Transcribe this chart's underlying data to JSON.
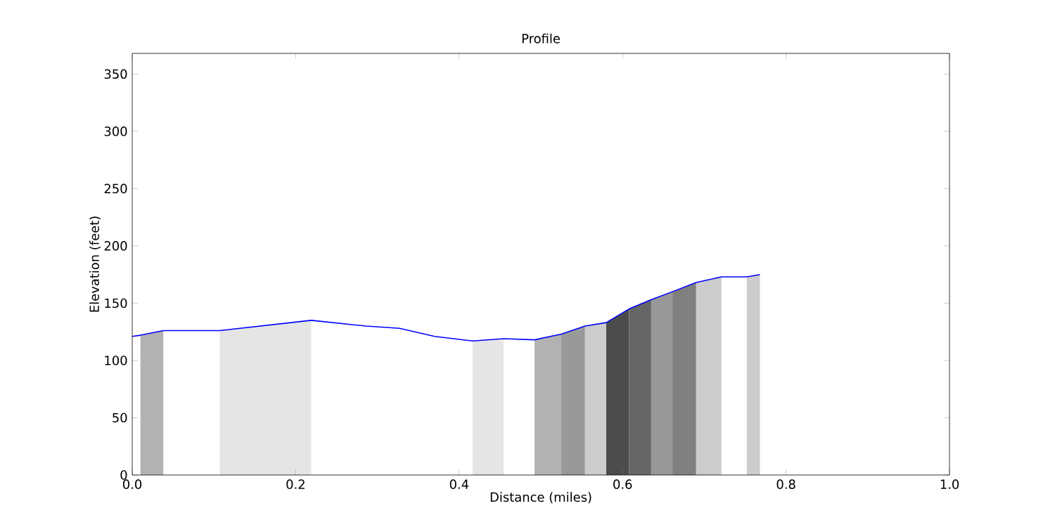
{
  "chart_data": {
    "type": "line",
    "title": "Profile",
    "xlabel": "Distance (miles)",
    "ylabel": "Elevation (feet)",
    "xlim": [
      0,
      1
    ],
    "ylim": [
      0,
      368
    ],
    "xticks": [
      {
        "value": 0,
        "label": "0.0"
      },
      {
        "value": 0.2,
        "label": "0.2"
      },
      {
        "value": 0.4,
        "label": "0.4"
      },
      {
        "value": 0.6,
        "label": "0.6"
      },
      {
        "value": 0.8,
        "label": "0.8"
      },
      {
        "value": 1,
        "label": "1.0"
      }
    ],
    "yticks": [
      0,
      50,
      100,
      150,
      200,
      250,
      300,
      350
    ],
    "grid": false,
    "series": [
      {
        "type": "area",
        "color": "#b2b2b2",
        "x": [
          0.01,
          0.038
        ],
        "values": [
          122,
          126
        ]
      },
      {
        "type": "area",
        "color": "#e5e5e5",
        "x": [
          0.107,
          0.219
        ],
        "values": [
          126,
          135
        ]
      },
      {
        "type": "area",
        "color": "#e5e5e5",
        "x": [
          0.4165,
          0.4544
        ],
        "values": [
          117,
          119
        ]
      },
      {
        "type": "area",
        "color": "#b2b2b2",
        "x": [
          0.4923,
          0.525
        ],
        "values": [
          118,
          123
        ]
      },
      {
        "type": "area",
        "color": "#999999",
        "x": [
          0.525,
          0.554
        ],
        "values": [
          123,
          130
        ]
      },
      {
        "type": "area",
        "color": "#cccccc",
        "x": [
          0.554,
          0.58
        ],
        "values": [
          130,
          133
        ]
      },
      {
        "type": "area",
        "color": "#4c4c4c",
        "x": [
          0.58,
          0.608
        ],
        "values": [
          133,
          145
        ]
      },
      {
        "type": "area",
        "color": "#666666",
        "x": [
          0.608,
          0.635
        ],
        "values": [
          145,
          153
        ]
      },
      {
        "type": "area",
        "color": "#999999",
        "x": [
          0.635,
          0.661
        ],
        "values": [
          153,
          160
        ]
      },
      {
        "type": "area",
        "color": "#808080",
        "x": [
          0.661,
          0.69
        ],
        "values": [
          160,
          168
        ]
      },
      {
        "type": "area",
        "color": "#cccccc",
        "x": [
          0.69,
          0.721
        ],
        "values": [
          168,
          173
        ]
      },
      {
        "type": "area",
        "color": "#cccccc",
        "x": [
          0.752,
          0.768
        ],
        "values": [
          173,
          175
        ]
      },
      {
        "color": "#0000ff",
        "x": [
          0,
          0.01,
          0.038,
          0.107,
          0.219,
          0.286,
          0.327,
          0.37,
          0.4165,
          0.4544,
          0.4923,
          0.525,
          0.554,
          0.58,
          0.608,
          0.635,
          0.661,
          0.69,
          0.721,
          0.752,
          0.768
        ],
        "values": [
          121,
          122,
          126,
          126,
          135,
          130,
          128,
          121,
          117,
          119,
          118,
          123,
          130,
          133,
          145,
          153,
          160,
          168,
          173,
          173,
          175
        ]
      }
    ]
  }
}
